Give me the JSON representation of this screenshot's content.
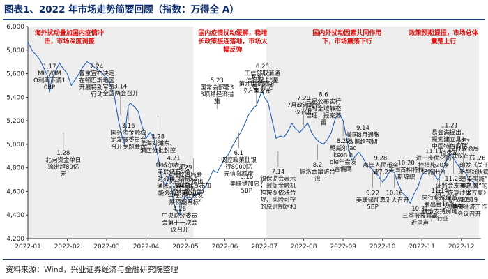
{
  "figure_title": "图表1、2022 年市场走势简要回顾（指数：万得全 A）",
  "source_note": "资料来源：Wind，兴业证券经济与金融研究院整理",
  "colors": {
    "line": "#1f5fb5",
    "red": "#e01010",
    "shade": "#eeeeee",
    "axis": "#333333"
  },
  "chart_data": {
    "type": "line",
    "title": "2022 年市场走势简要回顾（指数：万得全 A）",
    "series_name": "万得全A",
    "xlabel": "",
    "ylabel": "",
    "ylim": [
      4200,
      6000
    ],
    "yticks": [
      4200,
      4400,
      4600,
      4800,
      5000,
      5200,
      5400,
      5600,
      5800,
      6000
    ],
    "xticks": [
      "2022-01",
      "2022-02",
      "2022-03",
      "2022-04",
      "2022-05",
      "2022-06",
      "2022-07",
      "2022-08",
      "2022-09",
      "2022-10",
      "2022-11",
      "2022-12"
    ],
    "points": [
      [
        0.0,
        5870
      ],
      [
        0.1,
        5800
      ],
      [
        0.2,
        5760
      ],
      [
        0.3,
        5720
      ],
      [
        0.4,
        5650
      ],
      [
        0.5,
        5580
      ],
      [
        0.55,
        5440
      ],
      [
        0.6,
        5550
      ],
      [
        0.7,
        5620
      ],
      [
        0.8,
        5690
      ],
      [
        0.9,
        5640
      ],
      [
        1.0,
        5600
      ],
      [
        1.1,
        5500
      ],
      [
        1.2,
        5550
      ],
      [
        1.3,
        5600
      ],
      [
        1.4,
        5660
      ],
      [
        1.5,
        5700
      ],
      [
        1.6,
        5680
      ],
      [
        1.7,
        5650
      ],
      [
        1.8,
        5630
      ],
      [
        1.9,
        5600
      ],
      [
        2.0,
        5560
      ],
      [
        2.1,
        5500
      ],
      [
        2.2,
        5400
      ],
      [
        2.3,
        5200
      ],
      [
        2.4,
        5050
      ],
      [
        2.45,
        5000
      ],
      [
        2.5,
        5200
      ],
      [
        2.55,
        5330
      ],
      [
        2.6,
        5350
      ],
      [
        2.7,
        5320
      ],
      [
        2.8,
        5280
      ],
      [
        2.9,
        5150
      ],
      [
        3.0,
        5050
      ],
      [
        3.1,
        5100
      ],
      [
        3.2,
        5050
      ],
      [
        3.3,
        4900
      ],
      [
        3.4,
        4700
      ],
      [
        3.5,
        4650
      ],
      [
        3.6,
        4750
      ],
      [
        3.7,
        4500
      ],
      [
        3.8,
        4420
      ],
      [
        3.85,
        4400
      ],
      [
        3.9,
        4500
      ],
      [
        4.0,
        4560
      ],
      [
        4.1,
        4520
      ],
      [
        4.2,
        4560
      ],
      [
        4.3,
        4580
      ],
      [
        4.4,
        4600
      ],
      [
        4.5,
        4640
      ],
      [
        4.6,
        4700
      ],
      [
        4.7,
        4780
      ],
      [
        4.8,
        4760
      ],
      [
        4.9,
        4820
      ],
      [
        5.0,
        4880
      ],
      [
        5.1,
        4920
      ],
      [
        5.2,
        4990
      ],
      [
        5.3,
        5050
      ],
      [
        5.4,
        5100
      ],
      [
        5.5,
        5170
      ],
      [
        5.6,
        5250
      ],
      [
        5.7,
        5300
      ],
      [
        5.8,
        5330
      ],
      [
        5.9,
        5420
      ],
      [
        5.95,
        5450
      ],
      [
        6.0,
        5400
      ],
      [
        6.1,
        5350
      ],
      [
        6.2,
        5200
      ],
      [
        6.3,
        5050
      ],
      [
        6.4,
        5070
      ],
      [
        6.5,
        5060
      ],
      [
        6.6,
        5110
      ],
      [
        6.7,
        5180
      ],
      [
        6.8,
        5130
      ],
      [
        6.9,
        5100
      ],
      [
        7.0,
        5140
      ],
      [
        7.1,
        5180
      ],
      [
        7.2,
        5100
      ],
      [
        7.3,
        5050
      ],
      [
        7.4,
        5020
      ],
      [
        7.5,
        5000
      ],
      [
        7.6,
        5040
      ],
      [
        7.7,
        5100
      ],
      [
        7.8,
        5220
      ],
      [
        7.9,
        5260
      ],
      [
        8.0,
        5200
      ],
      [
        8.1,
        5030
      ],
      [
        8.2,
        4880
      ],
      [
        8.25,
        4860
      ],
      [
        8.3,
        4900
      ],
      [
        8.4,
        4930
      ],
      [
        8.5,
        4890
      ],
      [
        8.6,
        4820
      ],
      [
        8.7,
        4800
      ],
      [
        8.8,
        4760
      ],
      [
        8.9,
        4730
      ],
      [
        9.0,
        4680
      ],
      [
        9.1,
        4720
      ],
      [
        9.2,
        4780
      ],
      [
        9.3,
        4760
      ],
      [
        9.4,
        4660
      ],
      [
        9.5,
        4590
      ],
      [
        9.6,
        4560
      ],
      [
        9.7,
        4500
      ],
      [
        9.8,
        4580
      ],
      [
        9.9,
        4640
      ],
      [
        10.0,
        4740
      ],
      [
        10.1,
        4770
      ],
      [
        10.2,
        4780
      ],
      [
        10.3,
        4750
      ],
      [
        10.4,
        4700
      ],
      [
        10.5,
        4760
      ],
      [
        10.6,
        4840
      ],
      [
        10.7,
        4920
      ],
      [
        10.8,
        4880
      ],
      [
        10.9,
        4830
      ],
      [
        11.0,
        4780
      ],
      [
        11.1,
        4760
      ],
      [
        11.2,
        4700
      ],
      [
        11.3,
        4680
      ],
      [
        11.4,
        4640
      ]
    ],
    "shaded_ranges": [
      [
        0,
        4.2
      ],
      [
        6.05,
        11.45
      ]
    ],
    "red_annotations": [
      {
        "text": "海外扰动叠加国内疫情冲击，市场深度调整",
        "x": 1.05
      },
      {
        "text": "国内疫情扰动缓解，稳增长政策接连落地，市场大幅反弹",
        "x": 5.2
      },
      {
        "text": "国内外扰动因素共同作用下，市场震荡下行",
        "x": 8.1
      },
      {
        "text": "政策预期提振，市场总体震荡上行",
        "x": 10.55
      }
    ],
    "annotations": [
      {
        "date": "1.17",
        "text": "MLF/OMO利率下调10BP",
        "x": 0.55,
        "y": 5440
      },
      {
        "date": "1.28",
        "text": "北向资金单日流出超80亿元",
        "x": 0.9,
        "y": 5100
      },
      {
        "date": "2.24",
        "text": "普京宣布决定在顿巴斯地区开展特别军事行动",
        "x": 1.75,
        "y": 5700
      },
      {
        "date": "3.16",
        "text": "国务院金融稳定发展委员会召开专题会议",
        "x": 2.55,
        "y": 5330
      },
      {
        "date": "3.14",
        "text": "全国两会召开",
        "x": 2.35,
        "y": 5250
      },
      {
        "date": "3.28",
        "text": "上海对浦东、浦西分批封控",
        "x": 3.3,
        "y": 5240
      },
      {
        "date": "4.21",
        "text": "鲍威尔表示，美联储有“绝对必要”抑制通胀，5月可能会加息50个基点",
        "x": 3.7,
        "y": 4640
      },
      {
        "date": "4.26",
        "text": "中央财经委员会第十一次会议召开",
        "x": 3.85,
        "y": 4420
      },
      {
        "date": "4.29",
        "text": "4月政治局会议召开，提出“努力实现全年经济社会发展预期目标”",
        "x": 4.0,
        "y": 4560
      },
      {
        "date": "5.5",
        "text": "美联储宣布加息50BP",
        "x": 4.2,
        "y": 4880
      },
      {
        "date": "5.23",
        "text": "国常会部署33项稳经济措施",
        "x": 4.8,
        "y": 5300
      },
      {
        "date": "6.1",
        "text": "调控政策性银行8000亿元信贷额度",
        "x": 5.35,
        "y": 5100
      },
      {
        "date": "6.8",
        "text": "第九版新冠防控方案发布",
        "x": 5.8,
        "y": 5330
      },
      {
        "date": "6.16",
        "text": "美联储加息75BP",
        "x": 5.55,
        "y": 4900
      },
      {
        "date": "6.28",
        "text": "工信部取消通信行程卡“星号”标记",
        "x": 5.95,
        "y": 5450
      },
      {
        "date": "7.14",
        "text": "银保监会表示，敦促金融机构按照依法合规、风险可控的原则制定和开展房地产金融业务",
        "x": 6.35,
        "y": 4940
      },
      {
        "date": "7.29",
        "text": "7月政治局会议召开",
        "x": 7.0,
        "y": 5150
      },
      {
        "date": "8.2",
        "text": "佩洛西窜访台湾",
        "x": 7.35,
        "y": 5000
      },
      {
        "date": "8.6",
        "text": "三星公布实行临时全域静态管理，报案滞留",
        "x": 7.5,
        "y": 5180
      },
      {
        "date": "8.29",
        "text": "鲍威尔Jackson hole年会发言偏鹰",
        "x": 8.0,
        "y": 5200
      },
      {
        "date": "9.14",
        "text": "美国8月通胀数据超预期",
        "x": 8.5,
        "y": 4900
      },
      {
        "date": "9.22",
        "text": "美联储加息75BP",
        "x": 8.75,
        "y": 4760
      },
      {
        "date": "9.28",
        "text": "离岸人民币突破7.2",
        "x": 8.95,
        "y": 4640
      },
      {
        "date": "10.16",
        "text": "二十大召开",
        "x": 9.3,
        "y": 4760
      },
      {
        "date": "10.20",
        "text": "英国首相特拉斯辞职",
        "x": 9.6,
        "y": 4600
      },
      {
        "date": "10.31",
        "text": "三季报披露逼近尾声",
        "x": 9.95,
        "y": 4500
      },
      {
        "date": "11.11",
        "text": "进一步优化防控措施20条措施出台",
        "x": 10.3,
        "y": 4700
      },
      {
        "date": "11.14",
        "text": "央行和银保监会出台16条政策支持房地产行业",
        "x": 10.45,
        "y": 4780
      },
      {
        "date": "11.21",
        "text": "易会满提出，探索建立具有中国特色的估值体系",
        "x": 10.7,
        "y": 4920
      },
      {
        "date": "11.28",
        "text": "证监会发布办法，恢复涉房企业股权融资5项措施",
        "x": 10.8,
        "y": 4880
      },
      {
        "date": "12.7",
        "text": "12月政治局会议召开",
        "x": 11.05,
        "y": 4780
      },
      {
        "date": "12.19",
        "text": "中央经济工作会议召开",
        "x": 11.2,
        "y": 4700
      },
      {
        "date": "12.26",
        "text": "印发《关于对新型冠状病毒感染实施“乙类乙管”的总体方案》",
        "x": 11.4,
        "y": 4640
      }
    ]
  }
}
